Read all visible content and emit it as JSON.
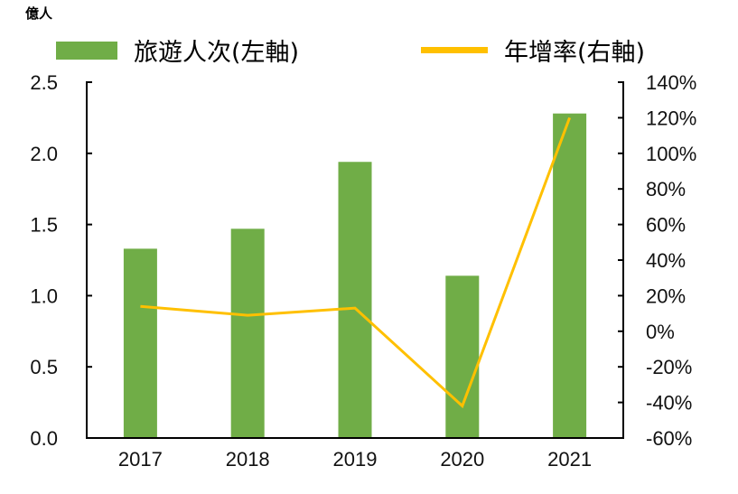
{
  "unit_label": "億人",
  "legend": [
    {
      "label": "旅遊人次(左軸)",
      "type": "bar",
      "color": "#70AD47"
    },
    {
      "label": "年增率(右軸)",
      "type": "line",
      "color": "#FFC000"
    }
  ],
  "chart_data": {
    "type": "bar+line",
    "categories": [
      "2017",
      "2018",
      "2019",
      "2020",
      "2021"
    ],
    "series": [
      {
        "name": "旅遊人次(左軸)",
        "type": "bar",
        "axis": "left",
        "color": "#70AD47",
        "values": [
          1.33,
          1.47,
          1.94,
          1.14,
          2.28
        ]
      },
      {
        "name": "年增率(右軸)",
        "type": "line",
        "axis": "right",
        "color": "#FFC000",
        "values": [
          14,
          9,
          13,
          -42,
          120
        ]
      }
    ],
    "left_axis": {
      "label": "億人",
      "min": 0,
      "max": 2.5,
      "step": 0.5,
      "ticks": [
        "0.0",
        "0.5",
        "1.0",
        "1.5",
        "2.0",
        "2.5"
      ]
    },
    "right_axis": {
      "min": -60,
      "max": 140,
      "step": 20,
      "ticks": [
        "-60%",
        "-40%",
        "-20%",
        "0%",
        "20%",
        "40%",
        "60%",
        "80%",
        "100%",
        "120%",
        "140%"
      ]
    },
    "grid": false,
    "legend_position": "top"
  }
}
